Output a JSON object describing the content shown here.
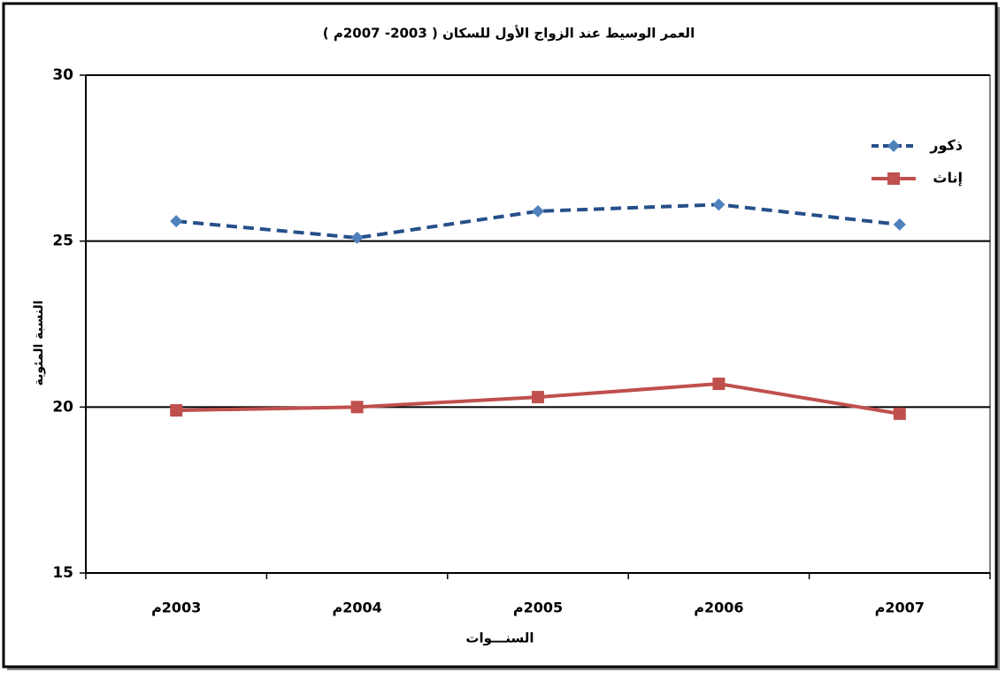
{
  "chart_data": {
    "type": "line",
    "title": "العمر الوسيط عند الزواج الأول للسكان ( 2003- 2007م )",
    "x_label": "السنـــوات",
    "y_label": "النسبة المئوية",
    "categories": [
      "2003م",
      "2004م",
      "2005م",
      "2006م",
      "2007م"
    ],
    "series": [
      {
        "name": "ذكور",
        "color": "#264f8a",
        "marker_color": "#4f81bd",
        "values": [
          25.6,
          25.1,
          25.9,
          26.1,
          25.5
        ]
      },
      {
        "name": "إناث",
        "color": "#c0504d",
        "marker_color": "#c0504d",
        "values": [
          19.9,
          20.0,
          20.3,
          20.7,
          19.8
        ]
      }
    ],
    "ylim": [
      15,
      30
    ],
    "yticks": [
      15,
      20,
      25,
      30
    ],
    "grid": true,
    "legend": "upper right"
  }
}
